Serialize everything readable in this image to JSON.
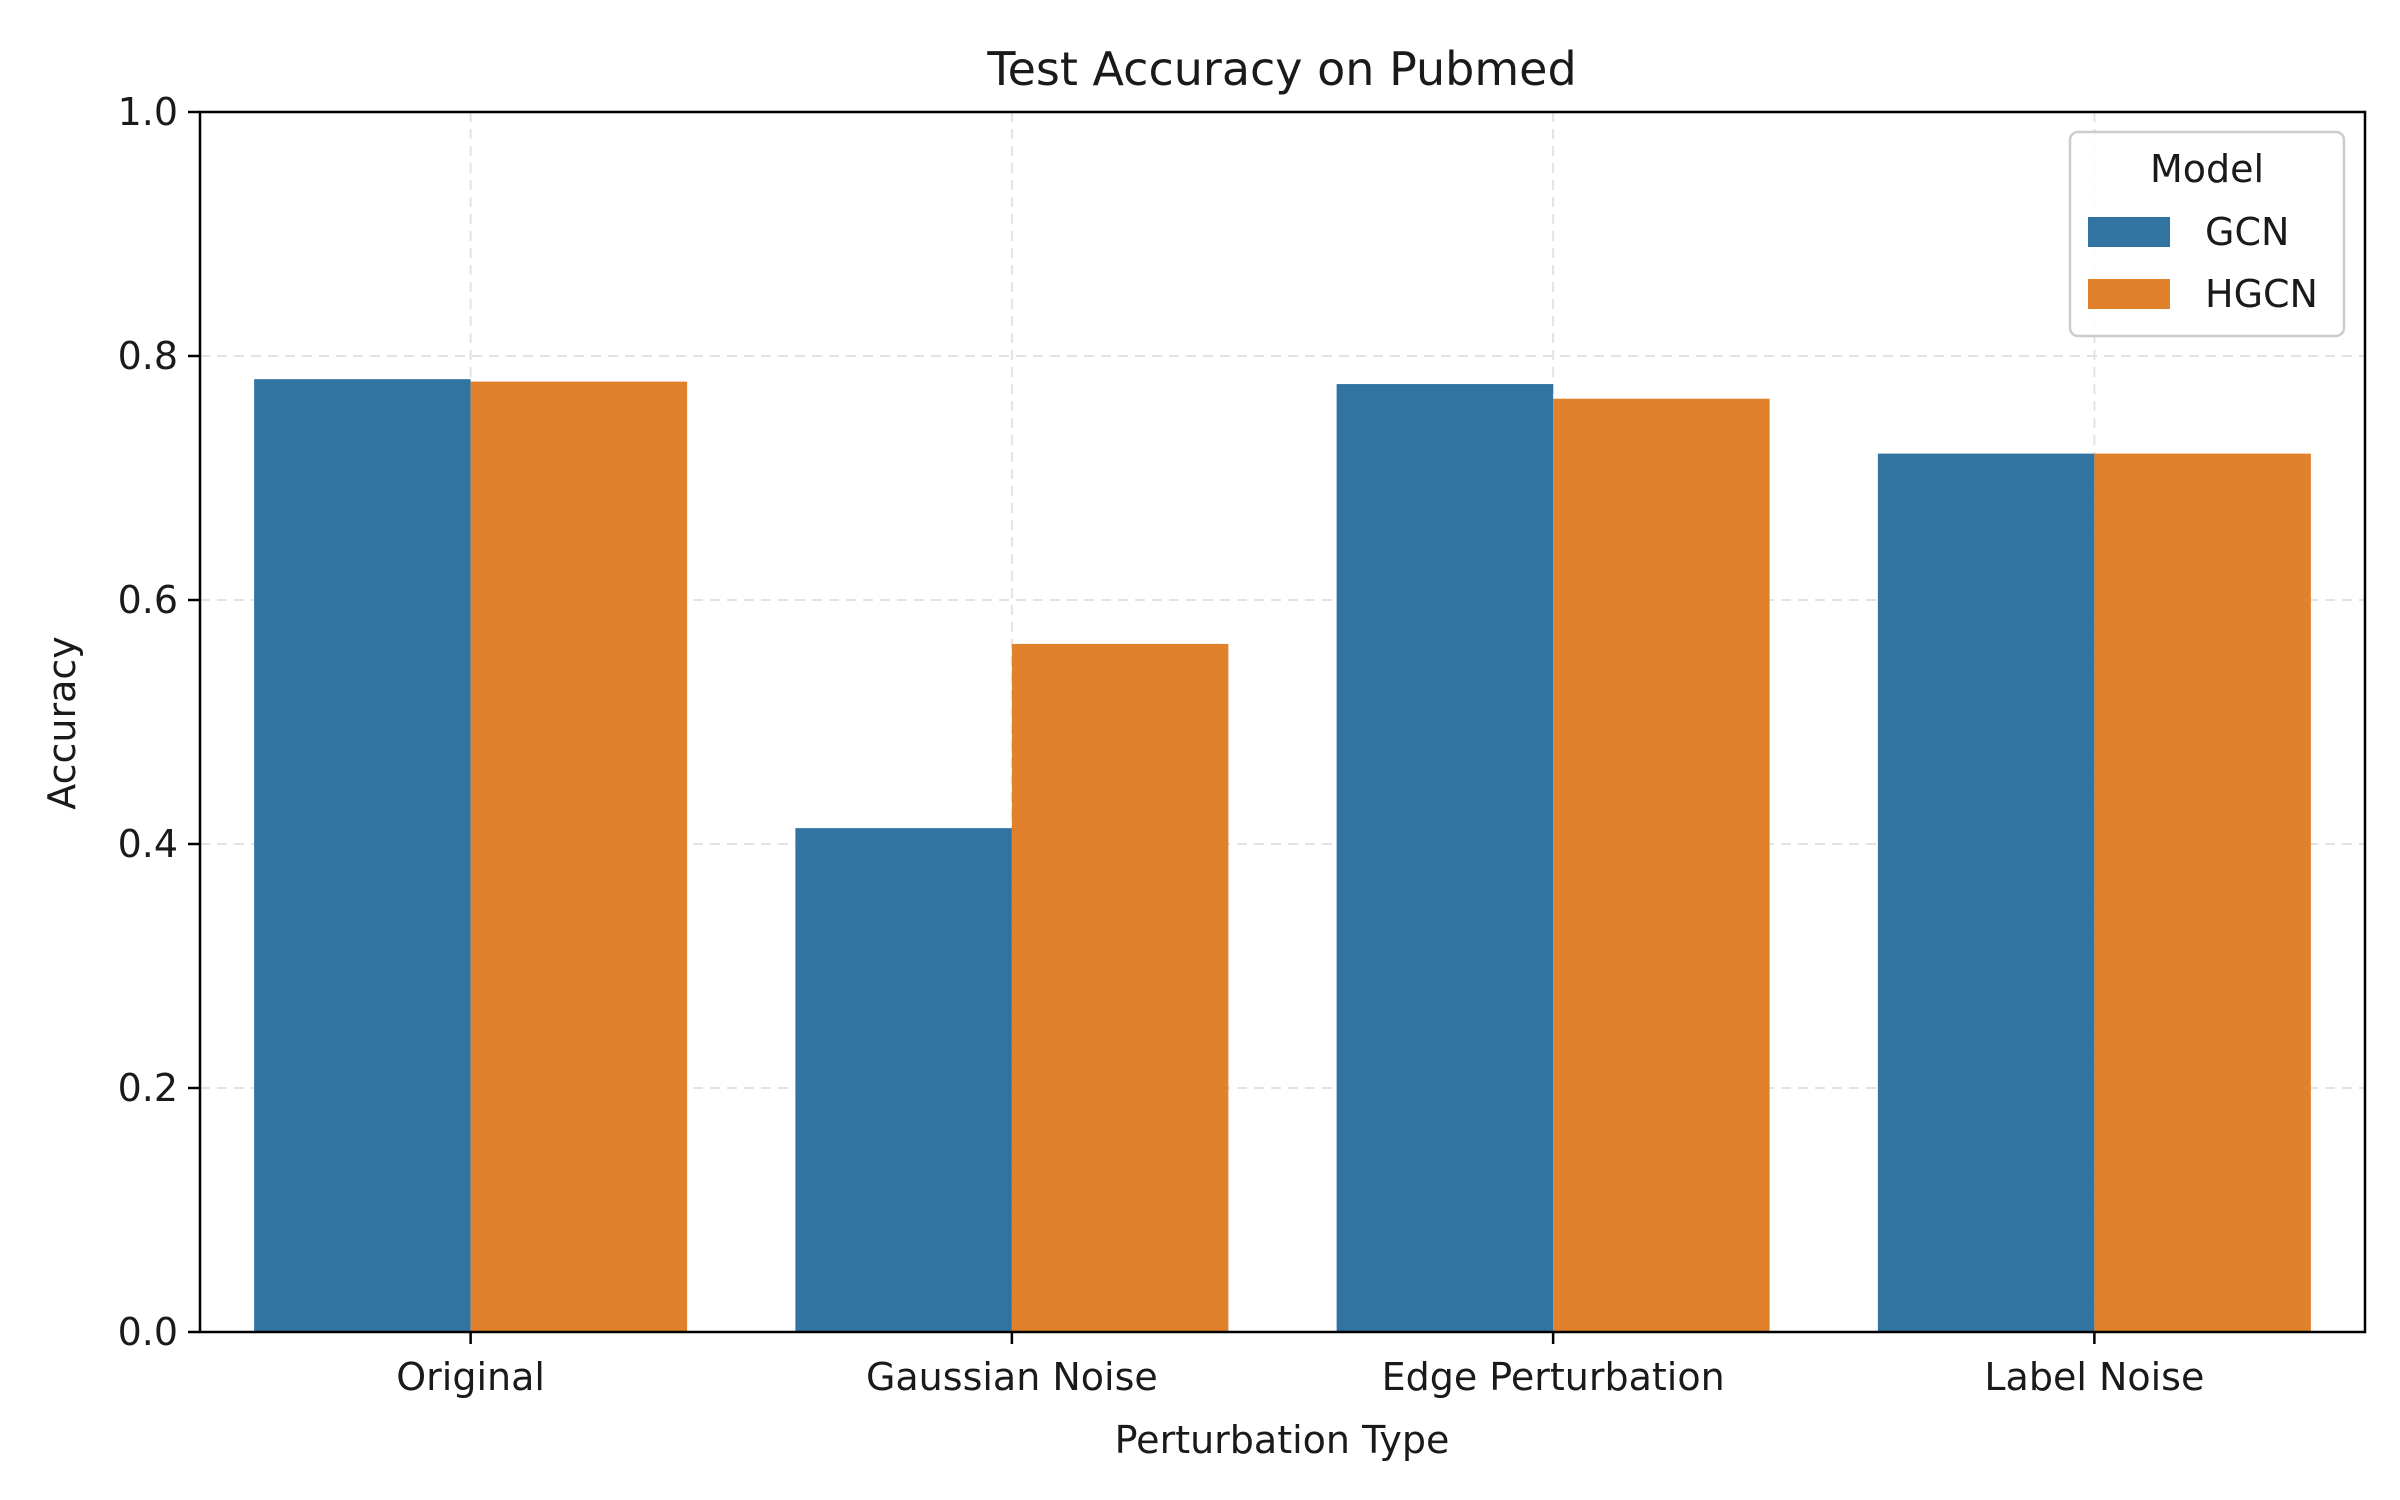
{
  "chart_data": {
    "type": "bar",
    "title": "Test Accuracy on Pubmed",
    "xlabel": "Perturbation Type",
    "ylabel": "Accuracy",
    "categories": [
      "Original",
      "Gaussian Noise",
      "Edge Perturbation",
      "Label Noise"
    ],
    "series": [
      {
        "name": "GCN",
        "color": "#3274a1",
        "values": [
          0.781,
          0.413,
          0.777,
          0.72
        ]
      },
      {
        "name": "HGCN",
        "color": "#e1812c",
        "values": [
          0.779,
          0.564,
          0.765,
          0.72
        ]
      }
    ],
    "ylim": [
      0,
      1.0
    ],
    "yticks": [
      "0.0",
      "0.2",
      "0.4",
      "0.6",
      "0.8",
      "1.0"
    ],
    "grid": true,
    "legend": {
      "title": "Model",
      "placement": "top-right"
    }
  }
}
